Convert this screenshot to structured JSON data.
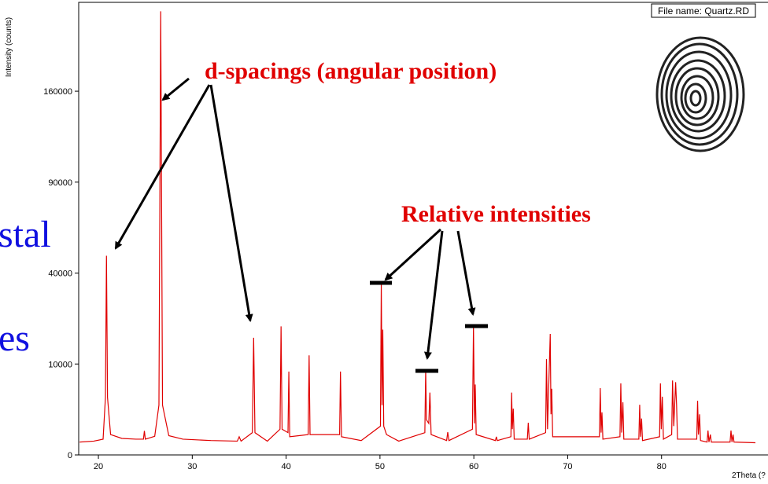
{
  "slide_text": [
    "stal",
    "es"
  ],
  "chart_data": {
    "type": "line",
    "y_scale": "sqrt",
    "y_label": "Intensity (counts)",
    "x_label": "2Theta (?",
    "file_label": "File name: Quartz.RD",
    "annotations": [
      "d-spacings (angular position)",
      "Relative intensities"
    ],
    "xlim": [
      17.9,
      90
    ],
    "ylim": [
      0,
      246000
    ],
    "xticks": [
      20,
      30,
      40,
      50,
      60,
      70,
      80
    ],
    "yticks": [
      0,
      10000,
      40000,
      90000,
      160000
    ],
    "series": [
      {
        "color": "#e00000",
        "x": [
          18.0,
          19.5,
          20.5,
          20.75,
          20.86,
          20.97,
          21.3,
          22.5,
          24.0,
          24.8,
          24.9,
          25.0,
          26.0,
          26.45,
          26.64,
          26.83,
          27.5,
          29.0,
          32.0,
          34.8,
          35.0,
          35.2,
          36.4,
          36.54,
          36.68,
          38.0,
          39.35,
          39.46,
          39.57,
          40.2,
          40.29,
          40.38,
          42.35,
          42.45,
          42.55,
          45.7,
          45.79,
          45.9,
          48.0,
          50.05,
          50.14,
          50.22,
          50.3,
          50.4,
          50.7,
          52.0,
          54.78,
          54.87,
          54.95,
          55.2,
          55.32,
          55.45,
          57.1,
          57.22,
          57.35,
          59.85,
          59.96,
          60.07,
          60.15,
          60.25,
          62.3,
          62.4,
          62.5,
          63.95,
          64.03,
          64.1,
          64.2,
          64.3,
          65.7,
          65.8,
          65.9,
          67.65,
          67.74,
          67.85,
          68.14,
          68.22,
          68.3,
          68.4,
          73.38,
          73.47,
          73.56,
          73.65,
          73.75,
          75.57,
          75.66,
          75.75,
          75.88,
          75.98,
          77.58,
          77.67,
          77.76,
          77.87,
          77.97,
          79.79,
          79.88,
          79.97,
          80.08,
          80.2,
          81.08,
          81.17,
          81.3,
          81.5,
          81.6,
          81.7,
          83.75,
          83.84,
          83.93,
          84.05,
          84.15,
          84.85,
          84.95,
          85.05,
          85.2,
          85.3,
          87.3,
          87.4,
          87.5,
          87.62,
          87.72,
          90.0
        ],
        "values": [
          200,
          230,
          300,
          4000,
          48000,
          4000,
          500,
          330,
          300,
          300,
          700,
          300,
          420,
          3000,
          238000,
          3000,
          450,
          300,
          250,
          230,
          400,
          230,
          600,
          16600,
          600,
          230,
          800,
          20000,
          800,
          600,
          8400,
          400,
          500,
          12000,
          500,
          500,
          8400,
          400,
          250,
          1000,
          35800,
          3000,
          19000,
          1000,
          500,
          230,
          600,
          8900,
          1500,
          1200,
          4700,
          500,
          250,
          630,
          250,
          800,
          20000,
          1200,
          6000,
          500,
          250,
          400,
          250,
          400,
          4700,
          800,
          2600,
          300,
          300,
          1250,
          300,
          600,
          11100,
          800,
          17700,
          2000,
          5300,
          400,
          400,
          5400,
          600,
          2200,
          300,
          400,
          6200,
          600,
          3350,
          300,
          300,
          3050,
          400,
          1600,
          250,
          400,
          6200,
          800,
          4100,
          300,
          500,
          6700,
          1000,
          6400,
          3000,
          300,
          300,
          3550,
          500,
          2000,
          250,
          200,
          720,
          200,
          500,
          200,
          200,
          720,
          200,
          500,
          200,
          180
        ]
      }
    ]
  }
}
